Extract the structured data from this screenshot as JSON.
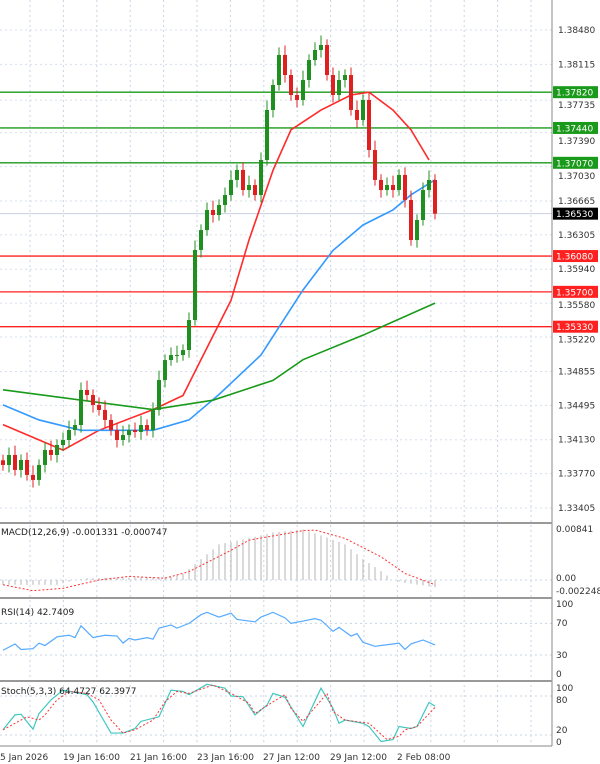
{
  "chart_data": {
    "type": "candlestick",
    "symbol_panel": {
      "price_axis_ticks": [
        "1.38480",
        "1.38115",
        "1.37735",
        "1.37390",
        "1.37030",
        "1.36665",
        "1.36305",
        "1.35940",
        "1.35580",
        "1.35220",
        "1.34855",
        "1.34495",
        "1.34130",
        "1.33770",
        "1.33405"
      ],
      "price_range": [
        1.3315,
        1.388
      ],
      "current_price": {
        "value": 1.3653,
        "label": "1.36530",
        "color": "#000000"
      },
      "levels": [
        {
          "value": 1.3782,
          "label": "1.37820",
          "color": "#1a9a1a"
        },
        {
          "value": 1.3744,
          "label": "1.37440",
          "color": "#1a9a1a"
        },
        {
          "value": 1.3707,
          "label": "1.37070",
          "color": "#1a9a1a"
        },
        {
          "value": 1.3608,
          "label": "1.36080",
          "color": "#ff2020"
        },
        {
          "value": 1.357,
          "label": "1.35700",
          "color": "#ff2020"
        },
        {
          "value": 1.3533,
          "label": "1.35330",
          "color": "#ff2020"
        }
      ],
      "closes": [
        1.33862,
        1.33968,
        1.33809,
        1.33915,
        1.33756,
        1.33703,
        1.33862,
        1.34021,
        1.33968,
        1.34074,
        1.34127,
        1.34233,
        1.34286,
        1.34658,
        1.34605,
        1.34499,
        1.34446,
        1.3434,
        1.34233,
        1.34127,
        1.3418,
        1.34233,
        1.34212,
        1.34286,
        1.34233,
        1.34446,
        1.34764,
        1.34976,
        1.35029,
        1.35029,
        1.35082,
        1.35401,
        1.36145,
        1.36356,
        1.36569,
        1.36516,
        1.36622,
        1.36728,
        1.36888,
        1.36994,
        1.36781,
        1.36834,
        1.36728,
        1.371,
        1.37631,
        1.37896,
        1.38215,
        1.38002,
        1.3779,
        1.37737,
        1.37949,
        1.38161,
        1.38268,
        1.38321,
        1.38002,
        1.3779,
        1.37949,
        1.38002,
        1.37631,
        1.37525,
        1.37737,
        1.37206,
        1.36888,
        1.36781,
        1.36834,
        1.36781,
        1.36941,
        1.36675,
        1.3625,
        1.36463,
        1.36781,
        1.36888,
        1.3653
      ],
      "bull_color": "#1f8f1f",
      "bear_color": "#e02020",
      "moving_averages": [
        {
          "color": "#ff2a2a",
          "points": [
            [
              0,
              1.3429
            ],
            [
              10,
              1.3402
            ],
            [
              16,
              1.3423
            ],
            [
              25,
              1.3445
            ],
            [
              30,
              1.346
            ],
            [
              33,
              1.3498
            ],
            [
              38,
              1.3561
            ],
            [
              41,
              1.3625
            ],
            [
              45,
              1.3699
            ],
            [
              48,
              1.3742
            ],
            [
              53,
              1.3763
            ],
            [
              58,
              1.3779
            ],
            [
              61,
              1.3782
            ],
            [
              65,
              1.3763
            ],
            [
              68,
              1.3742
            ],
            [
              71,
              1.371
            ]
          ]
        },
        {
          "color": "#3399ff",
          "points": [
            [
              0,
              1.345
            ],
            [
              6,
              1.3434
            ],
            [
              13,
              1.3423
            ],
            [
              25,
              1.3423
            ],
            [
              31,
              1.3434
            ],
            [
              36,
              1.3461
            ],
            [
              43,
              1.3503
            ],
            [
              50,
              1.3572
            ],
            [
              55,
              1.3614
            ],
            [
              60,
              1.3641
            ],
            [
              65,
              1.3657
            ],
            [
              68,
              1.3673
            ],
            [
              72,
              1.3689
            ]
          ]
        },
        {
          "color": "#1a9a1a",
          "points": [
            [
              0,
              1.3466
            ],
            [
              25,
              1.3445
            ],
            [
              35,
              1.3455
            ],
            [
              45,
              1.3476
            ],
            [
              50,
              1.3498
            ],
            [
              60,
              1.3524
            ],
            [
              72,
              1.3558
            ]
          ]
        }
      ]
    },
    "macd": {
      "label": "MACD(12,26,9) -0.001331 -0.000747",
      "ticks": [
        "0.00841",
        "0.00",
        "-0.002248"
      ],
      "histogram_points": [
        [
          0,
          -0.0008
        ],
        [
          9,
          -0.0008
        ],
        [
          12,
          0
        ],
        [
          14,
          0.0003
        ],
        [
          28,
          0.0005
        ],
        [
          30,
          0.001
        ],
        [
          33,
          0.0035
        ],
        [
          36,
          0.006
        ],
        [
          40,
          0.0068
        ],
        [
          45,
          0.008
        ],
        [
          50,
          0.0085
        ],
        [
          53,
          0.0075
        ],
        [
          57,
          0.006
        ],
        [
          60,
          0.0035
        ],
        [
          63,
          0.0015
        ],
        [
          65,
          0
        ],
        [
          67,
          -0.0005
        ],
        [
          72,
          -0.0012
        ]
      ],
      "signal_points": [
        [
          0,
          -0.0008
        ],
        [
          5,
          -0.0018
        ],
        [
          10,
          -0.0014
        ],
        [
          16,
          0
        ],
        [
          21,
          0.0006
        ],
        [
          27,
          0.0003
        ],
        [
          31,
          0.0014
        ],
        [
          38,
          0.005
        ],
        [
          41,
          0.0067
        ],
        [
          50,
          0.0083
        ],
        [
          52,
          0.0084
        ],
        [
          57,
          0.007
        ],
        [
          63,
          0.0039
        ],
        [
          67,
          0.0011
        ],
        [
          72,
          -0.0008
        ]
      ],
      "hist_color": "#c0c0c0",
      "signal_color": "#ff3030"
    },
    "rsi": {
      "label": "RSI(14) 42.7409",
      "ticks": [
        "100",
        "70",
        "30",
        "0"
      ],
      "color": "#55aaff",
      "points": [
        [
          0,
          36
        ],
        [
          2,
          44
        ],
        [
          3,
          37
        ],
        [
          5,
          38
        ],
        [
          6,
          45
        ],
        [
          7,
          42
        ],
        [
          9,
          53
        ],
        [
          11,
          55
        ],
        [
          12,
          52
        ],
        [
          13,
          67
        ],
        [
          15,
          52
        ],
        [
          17,
          55
        ],
        [
          19,
          54
        ],
        [
          20,
          45
        ],
        [
          21,
          51
        ],
        [
          22,
          49
        ],
        [
          24,
          52
        ],
        [
          25,
          50
        ],
        [
          26,
          64
        ],
        [
          28,
          68
        ],
        [
          29,
          64
        ],
        [
          31,
          70
        ],
        [
          33,
          81
        ],
        [
          34,
          84
        ],
        [
          36,
          78
        ],
        [
          38,
          83
        ],
        [
          39,
          75
        ],
        [
          42,
          72
        ],
        [
          43,
          78
        ],
        [
          45,
          84
        ],
        [
          47,
          77
        ],
        [
          48,
          70
        ],
        [
          50,
          73
        ],
        [
          52,
          76
        ],
        [
          53,
          74
        ],
        [
          55,
          60
        ],
        [
          56,
          65
        ],
        [
          58,
          54
        ],
        [
          59,
          57
        ],
        [
          60,
          46
        ],
        [
          62,
          41
        ],
        [
          64,
          43
        ],
        [
          66,
          45
        ],
        [
          67,
          37
        ],
        [
          68,
          44
        ],
        [
          70,
          49
        ],
        [
          72,
          42.74
        ]
      ]
    },
    "stochastic": {
      "label": "Stoch(5,3,3) 64.4727 62.3977",
      "ticks": [
        "100",
        "80",
        "20",
        "0"
      ],
      "main_color": "#40c8c0",
      "signal_color": "#ff3030",
      "main_points": [
        [
          0,
          28
        ],
        [
          2,
          51
        ],
        [
          3,
          52
        ],
        [
          5,
          29
        ],
        [
          6,
          53
        ],
        [
          8,
          74
        ],
        [
          10,
          89
        ],
        [
          14,
          82
        ],
        [
          15,
          71
        ],
        [
          18,
          23
        ],
        [
          20,
          23
        ],
        [
          22,
          30
        ],
        [
          23,
          41
        ],
        [
          26,
          48
        ],
        [
          28,
          89
        ],
        [
          30,
          87
        ],
        [
          31,
          82
        ],
        [
          34,
          98
        ],
        [
          37,
          92
        ],
        [
          38,
          80
        ],
        [
          40,
          79
        ],
        [
          42,
          51
        ],
        [
          44,
          66
        ],
        [
          45,
          84
        ],
        [
          47,
          78
        ],
        [
          50,
          33
        ],
        [
          53,
          92
        ],
        [
          55,
          61
        ],
        [
          56,
          38
        ],
        [
          57,
          43
        ],
        [
          60,
          38
        ],
        [
          61,
          33
        ],
        [
          63,
          10
        ],
        [
          65,
          13
        ],
        [
          66,
          33
        ],
        [
          68,
          30
        ],
        [
          69,
          33
        ],
        [
          71,
          70
        ],
        [
          72,
          64.47
        ]
      ],
      "signal_points": [
        [
          0,
          28
        ],
        [
          2,
          38
        ],
        [
          4,
          48
        ],
        [
          6,
          43
        ],
        [
          7,
          51
        ],
        [
          9,
          74
        ],
        [
          11,
          87
        ],
        [
          14,
          84
        ],
        [
          16,
          74
        ],
        [
          18,
          43
        ],
        [
          20,
          23
        ],
        [
          22,
          28
        ],
        [
          25,
          43
        ],
        [
          27,
          71
        ],
        [
          29,
          87
        ],
        [
          31,
          84
        ],
        [
          35,
          97
        ],
        [
          38,
          84
        ],
        [
          41,
          69
        ],
        [
          42,
          53
        ],
        [
          45,
          71
        ],
        [
          47,
          82
        ],
        [
          48,
          61
        ],
        [
          50,
          41
        ],
        [
          54,
          84
        ],
        [
          55,
          56
        ],
        [
          57,
          43
        ],
        [
          61,
          38
        ],
        [
          64,
          13
        ],
        [
          66,
          18
        ],
        [
          67,
          28
        ],
        [
          69,
          33
        ],
        [
          72,
          62.4
        ]
      ]
    },
    "time_axis_ticks": [
      "5 Jan 2026",
      "19 Jan 16:00",
      "21 Jan 16:00",
      "23 Jan 16:00",
      "27 Jan 12:00",
      "29 Jan 12:00",
      "2 Feb 08:00"
    ],
    "grid": true
  }
}
